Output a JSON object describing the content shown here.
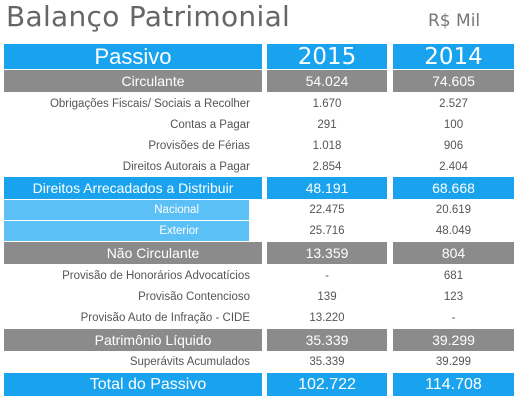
{
  "header": {
    "title": "Balanço Patrimonial",
    "unit": "R$ Mil"
  },
  "table": {
    "col_label": "Passivo",
    "col_2015": "2015",
    "col_2014": "2014",
    "rows": [
      {
        "label": "Circulante",
        "v2015": "54.024",
        "v2014": "74.605"
      },
      {
        "label": "Obrigações Fiscais/ Sociais a Recolher",
        "v2015": "1.670",
        "v2014": "2.527"
      },
      {
        "label": "Contas a Pagar",
        "v2015": "291",
        "v2014": "100"
      },
      {
        "label": "Provisões de Férias",
        "v2015": "1.018",
        "v2014": "906"
      },
      {
        "label": "Direitos Autorais a Pagar",
        "v2015": "2.854",
        "v2014": "2.404"
      },
      {
        "label": "Direitos Arrecadados a Distribuir",
        "v2015": "48.191",
        "v2014": "68.668"
      },
      {
        "label": "Nacional",
        "v2015": "22.475",
        "v2014": "20.619"
      },
      {
        "label": "Exterior",
        "v2015": "25.716",
        "v2014": "48.049"
      },
      {
        "label": "Não Circulante",
        "v2015": "13.359",
        "v2014": "804"
      },
      {
        "label": "Provisão de Honorários Advocatícios",
        "v2015": "-",
        "v2014": "681"
      },
      {
        "label": "Provisão Contencioso",
        "v2015": "139",
        "v2014": "123"
      },
      {
        "label": "Provisão Auto de Infração - CIDE",
        "v2015": "13.220",
        "v2014": "-"
      },
      {
        "label": "Patrimônio Líquido",
        "v2015": "35.339",
        "v2014": "39.299"
      },
      {
        "label": "Superávits Acumulados",
        "v2015": "35.339",
        "v2014": "39.299"
      },
      {
        "label": "Total do Passivo",
        "v2015": "102.722",
        "v2014": "114.708"
      }
    ]
  },
  "colors": {
    "header_blue": "#19a3ef",
    "sub_blue": "#5bc0f6",
    "section_gray": "#8b8b8b"
  }
}
